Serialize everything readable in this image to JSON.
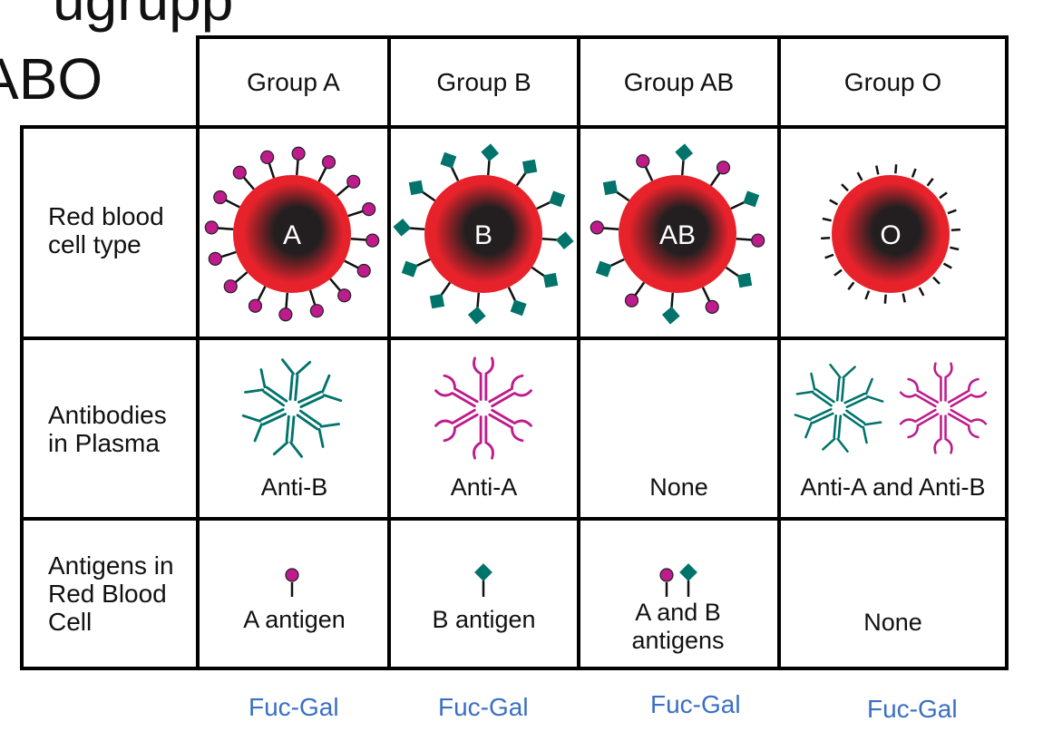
{
  "title_fragment": "ugrupp",
  "title": "ABO",
  "columns": [
    "Group A",
    "Group B",
    "Group AB",
    "Group O"
  ],
  "rows": {
    "cell_type": "Red blood cell type",
    "antibodies": "Antibodies in Plasma",
    "antigens": "Antigens in Red Blood Cell"
  },
  "cells": [
    {
      "letter": "A",
      "antibody": "Anti-B",
      "antigen": "A antigen"
    },
    {
      "letter": "B",
      "antibody": "Anti-A",
      "antigen": "B antigen"
    },
    {
      "letter": "AB",
      "antibody": "None",
      "antigen": "A and B antigens"
    },
    {
      "letter": "O",
      "antibody": "Anti-A and Anti-B",
      "antigen": "None"
    }
  ],
  "annotations": [
    "Fuc-Gal",
    "Fuc-Gal",
    "Fuc-Gal",
    "Fuc-Gal"
  ],
  "colors": {
    "cell_red": "#e8222b",
    "cell_core": "#231f20",
    "antigen_a": "#be1b8c",
    "antigen_b": "#00736b",
    "annotation": "#3a6fc4"
  }
}
